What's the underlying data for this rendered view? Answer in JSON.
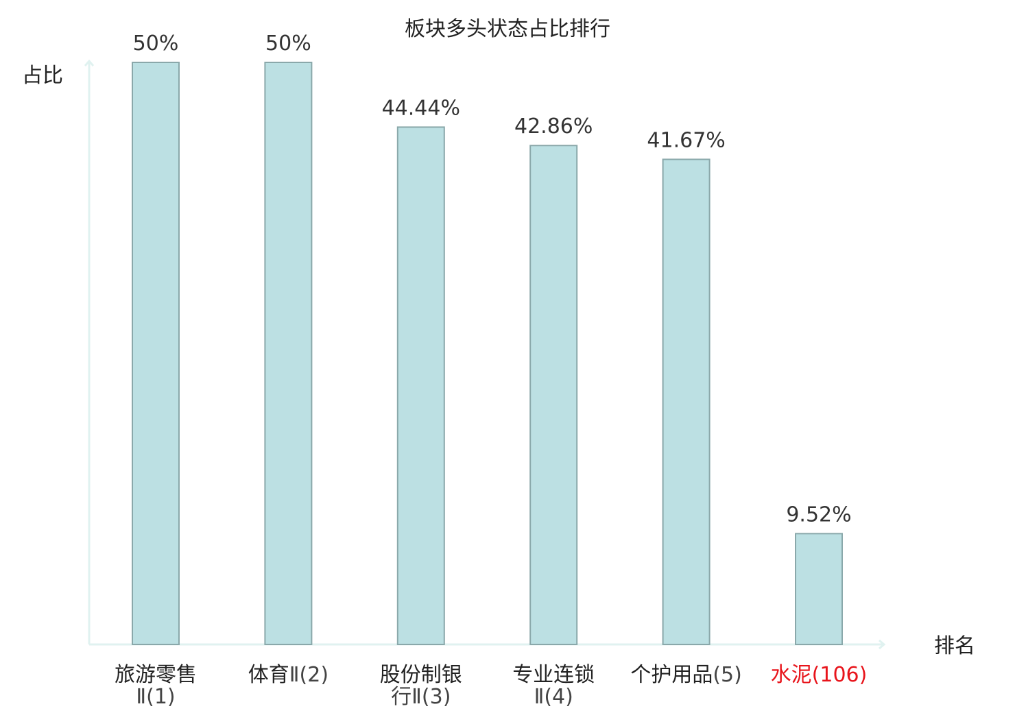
{
  "chart_data": {
    "type": "bar",
    "title": "板块多头状态占比排行",
    "ylabel": "占比",
    "xlabel": "排名",
    "categories": [
      {
        "name_lines": [
          "旅游零售"
        ],
        "rank_line": "Ⅱ(1)",
        "highlight": false
      },
      {
        "name_lines": [
          "体育"
        ],
        "rank_line": "Ⅱ(2)",
        "highlight": false,
        "inline": true
      },
      {
        "name_lines": [
          "股份制银"
        ],
        "rank_line": "行Ⅱ(3)",
        "highlight": false
      },
      {
        "name_lines": [
          "专业连锁"
        ],
        "rank_line": "Ⅱ(4)",
        "highlight": false
      },
      {
        "name_lines": [
          "个护用品"
        ],
        "rank_line": "(5)",
        "highlight": false,
        "inline": true
      },
      {
        "name_lines": [
          "水泥"
        ],
        "rank_line": "(106)",
        "highlight": true,
        "inline": true
      }
    ],
    "values": [
      50,
      50,
      44.44,
      42.86,
      41.67,
      9.52
    ],
    "value_labels": [
      "50%",
      "50%",
      "44.44%",
      "42.86%",
      "41.67%",
      "9.52%"
    ],
    "ylim": [
      0,
      50
    ],
    "grid": false,
    "colors": {
      "bar_fill": "#bce0e3",
      "bar_stroke": "#8aa8aa",
      "axis": "#e0f2f0",
      "highlight_text": "#e8141b"
    }
  }
}
